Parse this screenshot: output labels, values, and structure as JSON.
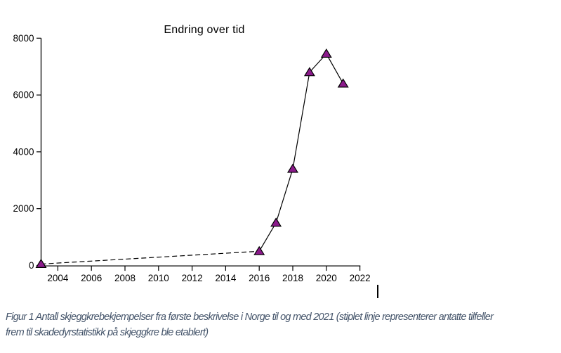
{
  "chart_data": {
    "type": "line",
    "title": "Endring over tid",
    "xlabel": "",
    "ylabel": "",
    "xlim": [
      2003,
      2022
    ],
    "ylim": [
      0,
      8000
    ],
    "x_ticks": [
      2004,
      2006,
      2008,
      2010,
      2012,
      2014,
      2016,
      2018,
      2020,
      2022
    ],
    "y_ticks": [
      0,
      2000,
      4000,
      6000,
      8000
    ],
    "grid": false,
    "legend_position": "none",
    "axis_color": "#000000",
    "marker": {
      "shape": "triangle-up",
      "fill": "#8B1A8B",
      "stroke": "#000000"
    },
    "series": [
      {
        "name": "antatte tilfeller (stiplet linje)",
        "line_style": "dashed",
        "color": "#000000",
        "x": [
          2003,
          2016
        ],
        "y": [
          50,
          500
        ]
      },
      {
        "name": "skjeggkrebekjempelser",
        "line_style": "solid",
        "color": "#000000",
        "x": [
          2016,
          2017,
          2018,
          2019,
          2020,
          2021
        ],
        "y": [
          500,
          1500,
          3400,
          6800,
          7450,
          6400
        ]
      }
    ]
  },
  "caption": {
    "line1": "Figur 1 Antall skjeggkrebekjempelser fra første beskrivelse i Norge til og med 2021 (stiplet linje representerer antatte tilfeller",
    "line2": "frem til skadedyrstatistikk på skjeggkre ble etablert)",
    "color": "#44546A"
  }
}
